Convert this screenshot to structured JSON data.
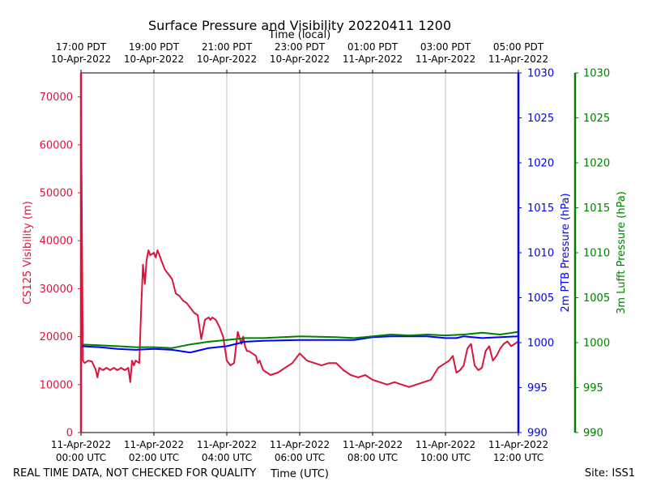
{
  "chart_data": {
    "type": "line",
    "title": "Surface Pressure and Visibility 20220411 1200",
    "top_axis_label": "Time (local)",
    "xlabel": "Time (UTC)",
    "bottom_left_note": "REAL TIME DATA, NOT CHECKED FOR QUALITY",
    "bottom_right_note": "Site: ISS1",
    "x_range_hours": [
      0,
      12
    ],
    "bottom_ticks": [
      {
        "h": 0,
        "l1": "11-Apr-2022",
        "l2": "00:00 UTC"
      },
      {
        "h": 2,
        "l1": "11-Apr-2022",
        "l2": "02:00 UTC"
      },
      {
        "h": 4,
        "l1": "11-Apr-2022",
        "l2": "04:00 UTC"
      },
      {
        "h": 6,
        "l1": "11-Apr-2022",
        "l2": "06:00 UTC"
      },
      {
        "h": 8,
        "l1": "11-Apr-2022",
        "l2": "08:00 UTC"
      },
      {
        "h": 10,
        "l1": "11-Apr-2022",
        "l2": "10:00 UTC"
      },
      {
        "h": 12,
        "l1": "11-Apr-2022",
        "l2": "12:00 UTC"
      }
    ],
    "top_ticks": [
      {
        "h": 0,
        "l1": "17:00 PDT",
        "l2": "10-Apr-2022"
      },
      {
        "h": 2,
        "l1": "19:00 PDT",
        "l2": "10-Apr-2022"
      },
      {
        "h": 4,
        "l1": "21:00 PDT",
        "l2": "10-Apr-2022"
      },
      {
        "h": 6,
        "l1": "23:00 PDT",
        "l2": "10-Apr-2022"
      },
      {
        "h": 8,
        "l1": "01:00 PDT",
        "l2": "11-Apr-2022"
      },
      {
        "h": 10,
        "l1": "03:00 PDT",
        "l2": "11-Apr-2022"
      },
      {
        "h": 12,
        "l1": "05:00 PDT",
        "l2": "11-Apr-2022"
      }
    ],
    "left_axis": {
      "label": "CS125 Visibility (m)",
      "color": "#dc143c",
      "range": [
        0,
        75000
      ],
      "ticks": [
        0,
        10000,
        20000,
        30000,
        40000,
        50000,
        60000,
        70000
      ]
    },
    "right_axis": {
      "label": "2m PTB Pressure (hPa)",
      "color": "#0000ff",
      "range": [
        990,
        1030
      ],
      "ticks": [
        990,
        995,
        1000,
        1005,
        1010,
        1015,
        1020,
        1025,
        1030
      ]
    },
    "outer_axis": {
      "label": "3m Lufft Pressure (hPa)",
      "color": "#008000",
      "range": [
        990,
        1030
      ],
      "ticks": [
        990,
        995,
        1000,
        1005,
        1010,
        1015,
        1020,
        1025,
        1030
      ]
    },
    "grid": "vertical",
    "series": [
      {
        "name": "CS125 Visibility (m)",
        "axis": "left",
        "color": "#dc143c",
        "x": [
          0,
          0.05,
          0.1,
          0.2,
          0.3,
          0.4,
          0.45,
          0.5,
          0.6,
          0.7,
          0.8,
          0.9,
          1.0,
          1.1,
          1.2,
          1.3,
          1.35,
          1.4,
          1.45,
          1.5,
          1.6,
          1.65,
          1.7,
          1.75,
          1.8,
          1.85,
          1.9,
          2.0,
          2.05,
          2.1,
          2.2,
          2.3,
          2.4,
          2.5,
          2.6,
          2.7,
          2.8,
          2.9,
          3.0,
          3.1,
          3.2,
          3.3,
          3.4,
          3.5,
          3.55,
          3.6,
          3.7,
          3.8,
          3.9,
          4.0,
          4.1,
          4.2,
          4.3,
          4.4,
          4.45,
          4.5,
          4.55,
          4.6,
          4.7,
          4.8,
          4.85,
          4.9,
          5.0,
          5.2,
          5.4,
          5.6,
          5.8,
          6.0,
          6.2,
          6.4,
          6.6,
          6.8,
          7.0,
          7.2,
          7.4,
          7.6,
          7.8,
          8.0,
          8.2,
          8.4,
          8.6,
          8.8,
          9.0,
          9.2,
          9.4,
          9.6,
          9.8,
          10.0,
          10.1,
          10.2,
          10.3,
          10.4,
          10.5,
          10.6,
          10.7,
          10.8,
          10.9,
          11.0,
          11.1,
          11.2,
          11.3,
          11.4,
          11.5,
          11.6,
          11.7,
          11.8,
          11.9,
          12.0
        ],
        "values": [
          70000,
          15000,
          14500,
          15000,
          14800,
          13200,
          11500,
          13500,
          13000,
          13500,
          13000,
          13500,
          13000,
          13500,
          13000,
          13500,
          10500,
          15000,
          14000,
          15000,
          14500,
          26000,
          35000,
          31000,
          36000,
          38000,
          37000,
          37500,
          36500,
          38000,
          36000,
          34000,
          33000,
          32000,
          29000,
          28500,
          27500,
          27000,
          26000,
          25000,
          24500,
          19500,
          23500,
          24000,
          23500,
          24000,
          23500,
          22000,
          20000,
          15000,
          14000,
          14500,
          21000,
          18500,
          20000,
          18000,
          17000,
          17000,
          16500,
          16000,
          14500,
          15000,
          13000,
          12000,
          12500,
          13500,
          14500,
          16500,
          15000,
          14500,
          14000,
          14500,
          14500,
          13000,
          12000,
          11500,
          12000,
          11000,
          10500,
          10000,
          10500,
          10000,
          9500,
          10000,
          10500,
          11000,
          13500,
          14500,
          15000,
          16000,
          12500,
          13000,
          14000,
          17500,
          18500,
          14000,
          13000,
          13500,
          17000,
          18000,
          15000,
          16000,
          17500,
          18500,
          19000,
          18000,
          18500,
          19000
        ]
      },
      {
        "name": "2m PTB Pressure (hPa)",
        "axis": "right",
        "color": "#0000ff",
        "x": [
          0,
          0.5,
          1.0,
          1.5,
          2.0,
          2.5,
          3.0,
          3.2,
          3.5,
          4.0,
          4.5,
          5.0,
          6.0,
          7.0,
          7.5,
          8.0,
          8.5,
          9.0,
          9.5,
          10.0,
          10.3,
          10.5,
          11.0,
          11.5,
          12.0
        ],
        "values": [
          999.6,
          999.5,
          999.3,
          999.2,
          999.3,
          999.2,
          998.9,
          999.1,
          999.4,
          999.6,
          1000.1,
          1000.2,
          1000.3,
          1000.3,
          1000.3,
          1000.6,
          1000.7,
          1000.7,
          1000.7,
          1000.5,
          1000.5,
          1000.7,
          1000.5,
          1000.6,
          1000.7
        ]
      },
      {
        "name": "3m Lufft Pressure (hPa)",
        "axis": "outer",
        "color": "#008000",
        "x": [
          0,
          0.5,
          1.0,
          1.5,
          2.0,
          2.5,
          3.0,
          3.5,
          4.0,
          4.5,
          5.0,
          6.0,
          7.0,
          7.5,
          8.0,
          8.5,
          9.0,
          9.5,
          10.0,
          10.5,
          11.0,
          11.5,
          12.0
        ],
        "values": [
          999.8,
          999.7,
          999.6,
          999.5,
          999.5,
          999.4,
          999.8,
          1000.1,
          1000.3,
          1000.5,
          1000.5,
          1000.7,
          1000.6,
          1000.5,
          1000.7,
          1000.9,
          1000.8,
          1000.9,
          1000.8,
          1000.9,
          1001.1,
          1000.9,
          1001.2
        ]
      }
    ]
  }
}
